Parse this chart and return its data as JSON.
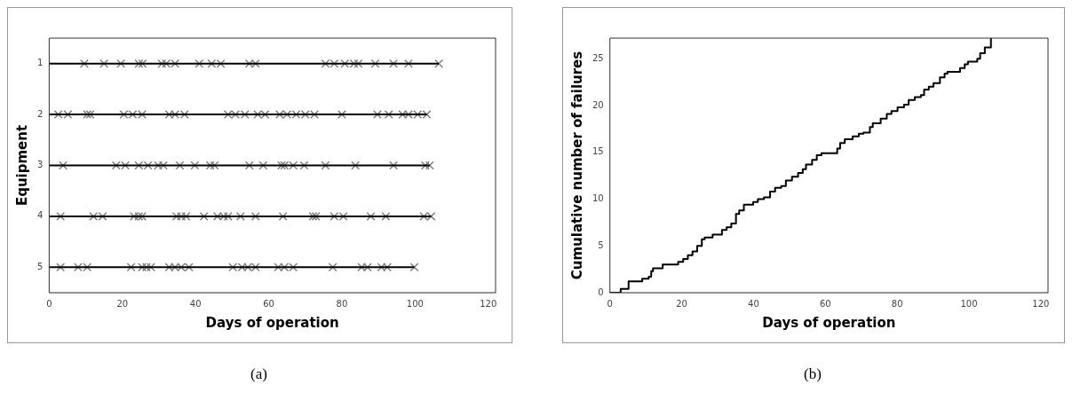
{
  "chart_data": [
    {
      "type": "scatter",
      "xlabel": "Days of operation",
      "ylabel": "Equipment",
      "xlim": [
        0,
        122
      ],
      "xticks": [
        0,
        20,
        40,
        60,
        80,
        100,
        120
      ],
      "ylim": [
        5.5,
        0.5
      ],
      "yticks": [
        1,
        2,
        3,
        4,
        5
      ],
      "marker": "cross",
      "annotations": [
        "(a)"
      ],
      "series": [
        {
          "type": "line",
          "color": "#000000",
          "marker": "none",
          "x": [
            0,
            106.5
          ],
          "values": [
            1,
            1
          ]
        },
        {
          "color": "#808080",
          "x": [
            9.6,
            15,
            19.6,
            24.5,
            25.5,
            30.8,
            32,
            34.4,
            41,
            44.4,
            46.9,
            54.7,
            56.4,
            75.5,
            77.9,
            80.8,
            83.3,
            84.5,
            89.1,
            94.1,
            98.2,
            106.5
          ],
          "values": [
            1,
            1,
            1,
            1,
            1,
            1,
            1,
            1,
            1,
            1,
            1,
            1,
            1,
            1,
            1,
            1,
            1,
            1,
            1,
            1,
            1,
            1
          ]
        },
        {
          "type": "line",
          "color": "#000000",
          "marker": "none",
          "x": [
            0,
            103.2
          ],
          "values": [
            2,
            2
          ]
        },
        {
          "color": "#808080",
          "x": [
            2.5,
            5.1,
            10.4,
            11.2,
            20.4,
            22.8,
            25.4,
            32.8,
            34.4,
            37,
            48.9,
            50.9,
            53.5,
            57,
            59,
            63,
            65,
            67.5,
            70,
            72.5,
            80,
            89.7,
            92.8,
            96.6,
            98.2,
            100.7,
            103.2
          ],
          "values": [
            2,
            2,
            2,
            2,
            2,
            2,
            2,
            2,
            2,
            2,
            2,
            2,
            2,
            2,
            2,
            2,
            2,
            2,
            2,
            2,
            2,
            2,
            2,
            2,
            2,
            2,
            2
          ]
        },
        {
          "type": "line",
          "color": "#000000",
          "marker": "none",
          "x": [
            0,
            104
          ],
          "values": [
            3,
            3
          ]
        },
        {
          "color": "#808080",
          "x": [
            3.8,
            18.3,
            20.8,
            24.5,
            27,
            29.8,
            31.2,
            35.7,
            39.8,
            44,
            45.2,
            54.7,
            58.5,
            63.5,
            64.3,
            66.7,
            69.7,
            75.5,
            83.7,
            94.1,
            102.8,
            104
          ],
          "values": [
            3,
            3,
            3,
            3,
            3,
            3,
            3,
            3,
            3,
            3,
            3,
            3,
            3,
            3,
            3,
            3,
            3,
            3,
            3,
            3,
            3,
            3
          ]
        },
        {
          "type": "line",
          "color": "#000000",
          "marker": "none",
          "x": [
            0,
            104.4
          ],
          "values": [
            4,
            4
          ]
        },
        {
          "color": "#808080",
          "x": [
            3.1,
            12.1,
            14.6,
            23.2,
            24.5,
            25.4,
            34.8,
            36.1,
            37.4,
            42.3,
            46,
            47.7,
            48.9,
            52.3,
            56.4,
            63.9,
            72.1,
            72.9,
            77.9,
            80.4,
            87.9,
            92,
            102.4,
            104.4
          ],
          "values": [
            4,
            4,
            4,
            4,
            4,
            4,
            4,
            4,
            4,
            4,
            4,
            4,
            4,
            4,
            4,
            4,
            4,
            4,
            4,
            4,
            4,
            4,
            4,
            4
          ]
        },
        {
          "type": "line",
          "color": "#000000",
          "marker": "none",
          "x": [
            0,
            99.8
          ],
          "values": [
            5,
            5
          ]
        },
        {
          "color": "#808080",
          "x": [
            3.1,
            7.9,
            10.4,
            22.4,
            25.4,
            26.6,
            27.8,
            32.8,
            34.4,
            36.1,
            38.2,
            50.2,
            52.7,
            54.3,
            56.4,
            62.6,
            64.3,
            66.7,
            77.5,
            85.4,
            87,
            90.8,
            92.4,
            99.8
          ],
          "values": [
            5,
            5,
            5,
            5,
            5,
            5,
            5,
            5,
            5,
            5,
            5,
            5,
            5,
            5,
            5,
            5,
            5,
            5,
            5,
            5,
            5,
            5,
            5,
            5
          ]
        }
      ]
    },
    {
      "type": "step",
      "xlabel": "Days of operation",
      "ylabel": "Cumulative number of failures",
      "xlim": [
        0,
        122
      ],
      "xticks": [
        0,
        20,
        40,
        60,
        80,
        100,
        120
      ],
      "ylim": [
        0,
        27.2
      ],
      "yticks": [
        0,
        5,
        10,
        15,
        20,
        25
      ],
      "color": "#000000",
      "annotations": [
        "(b)"
      ],
      "x": [
        0,
        3,
        5.2,
        9,
        10.8,
        11.5,
        12,
        14.7,
        19,
        20.4,
        21.7,
        23,
        24.3,
        25.6,
        26.4,
        28.6,
        31.2,
        32.5,
        33.8,
        35.1,
        36,
        37.3,
        39.9,
        41.2,
        42.9,
        44.6,
        46,
        47.7,
        49,
        50.7,
        52.4,
        53.7,
        54.6,
        56.3,
        57.6,
        58.9,
        63.3,
        64.1,
        65.4,
        67.6,
        69.3,
        70.6,
        72.4,
        73.2,
        75.4,
        77.1,
        78.4,
        80.1,
        81.9,
        83.2,
        84.9,
        86.6,
        87.5,
        88.8,
        90.1,
        91.9,
        93.2,
        94,
        97.5,
        98.8,
        99.7,
        102.3,
        103.1,
        104.4,
        106.1
      ],
      "values": [
        0,
        0.4,
        1.2,
        1.5,
        1.7,
        2.3,
        2.6,
        3,
        3.3,
        3.6,
        4,
        4.4,
        5,
        5.7,
        5.9,
        6.2,
        6.7,
        7,
        7.4,
        8.4,
        8.8,
        9.4,
        9.7,
        10,
        10.2,
        10.8,
        11.2,
        11.4,
        12,
        12.4,
        12.8,
        13.2,
        13.7,
        14.2,
        14.7,
        14.9,
        15.4,
        16,
        16.4,
        16.7,
        17,
        17.1,
        17.7,
        18.1,
        18.6,
        19.1,
        19.4,
        19.8,
        20.1,
        20.6,
        20.9,
        21.1,
        21.7,
        22,
        22.4,
        23,
        23.4,
        23.6,
        24,
        24.4,
        24.7,
        25,
        25.6,
        26.2,
        27.2
      ]
    }
  ]
}
